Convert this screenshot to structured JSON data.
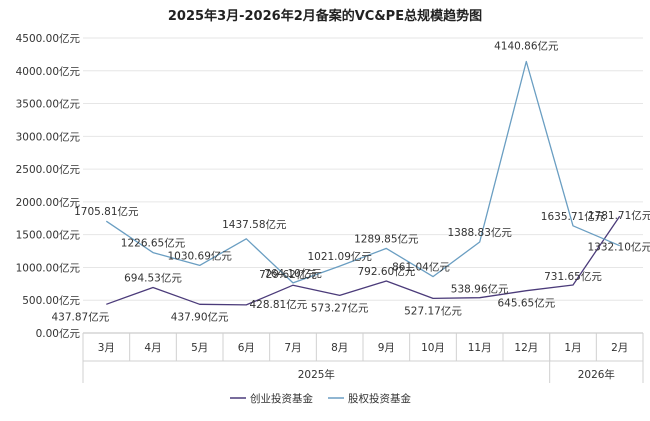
{
  "chart_data": {
    "type": "line",
    "title": "2025年3月-2026年2月备案的VC&PE总规模趋势图",
    "categories": [
      "3月",
      "4月",
      "5月",
      "6月",
      "7月",
      "8月",
      "9月",
      "10月",
      "11月",
      "12月",
      "1月",
      "2月"
    ],
    "year_groups": [
      {
        "label": "2025年",
        "from": 0,
        "to": 9
      },
      {
        "label": "2026年",
        "from": 10,
        "to": 11
      }
    ],
    "y_ticks": [
      "0.00亿元",
      "500.00亿元",
      "1000.00亿元",
      "1500.00亿元",
      "2000.00亿元",
      "2500.00亿元",
      "3000.00亿元",
      "3500.00亿元",
      "4000.00亿元",
      "4500.00亿元"
    ],
    "ylim": [
      0,
      4500
    ],
    "legend_position": "bottom",
    "series": [
      {
        "name": "创业投资基金",
        "color": "#4b3b7a",
        "values": [
          437.87,
          694.53,
          437.9,
          428.81,
          729.62,
          573.27,
          792.6,
          527.17,
          538.96,
          645.65,
          731.65,
          1781.71
        ],
        "labels": [
          "437.87亿元",
          "694.53亿元",
          "437.90亿元",
          "428.81亿元",
          "729.62亿元",
          "573.27亿元",
          "792.60亿元",
          "527.17亿元",
          "538.96亿元",
          "645.65亿元",
          "731.65亿元",
          "1781.71亿元"
        ]
      },
      {
        "name": "股权投资基金",
        "color": "#6a9ec2",
        "values": [
          1705.81,
          1226.65,
          1030.69,
          1437.58,
          764.1,
          1021.09,
          1289.85,
          861.04,
          1388.83,
          4140.86,
          1635.71,
          1332.1
        ],
        "labels": [
          "1705.81亿元",
          "1226.65亿元",
          "1030.69亿元",
          "1437.58亿元",
          "764.10亿元",
          "1021.09亿元",
          "1289.85亿元",
          "861.04亿元",
          "1388.83亿元",
          "4140.86亿元",
          "1635.71亿元",
          "1332.10亿元"
        ]
      }
    ]
  }
}
